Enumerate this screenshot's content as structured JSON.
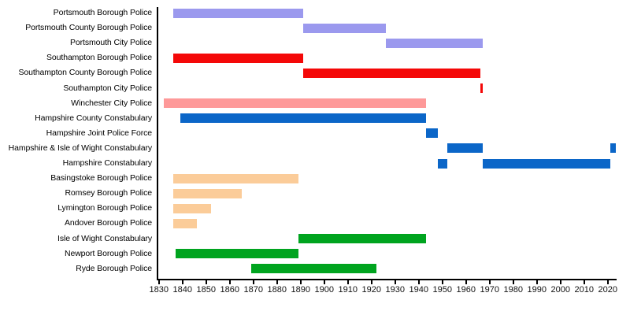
{
  "chart_data": {
    "type": "bar",
    "subtype": "timeline-gantt",
    "title": "",
    "xlabel": "",
    "ylabel": "",
    "grid": false,
    "legend": "none",
    "x_axis": {
      "min": 1829.4,
      "max": 2023.8,
      "tick_interval": 10,
      "ticks": [
        1830,
        1840,
        1850,
        1860,
        1870,
        1880,
        1890,
        1900,
        1910,
        1920,
        1930,
        1940,
        1950,
        1960,
        1970,
        1980,
        1990,
        2000,
        2010,
        2020
      ]
    },
    "colors": {
      "portsmouth": "#9b99ee",
      "southampton": "#f40808",
      "winchester": "#fe9999",
      "hampshire": "#0b66c8",
      "borough": "#fbcc99",
      "isle_of_wight": "#00a41f",
      "axis": "#000000"
    },
    "rows": [
      {
        "label": "Portsmouth Borough Police",
        "color": "portsmouth",
        "segments": [
          [
            1836,
            1891
          ]
        ]
      },
      {
        "label": "Portsmouth County Borough Police",
        "color": "portsmouth",
        "segments": [
          [
            1891,
            1926
          ]
        ]
      },
      {
        "label": "Portsmouth City Police",
        "color": "portsmouth",
        "segments": [
          [
            1926,
            1967
          ]
        ]
      },
      {
        "label": "Southampton Borough Police",
        "color": "southampton",
        "segments": [
          [
            1836,
            1891
          ]
        ]
      },
      {
        "label": "Southampton County Borough Police",
        "color": "southampton",
        "segments": [
          [
            1891,
            1966
          ]
        ]
      },
      {
        "label": "Southampton City Police",
        "color": "southampton",
        "segments": [
          [
            1966,
            1967
          ]
        ]
      },
      {
        "label": "Winchester City Police",
        "color": "winchester",
        "segments": [
          [
            1832,
            1943
          ]
        ]
      },
      {
        "label": "Hampshire County Constabulary",
        "color": "hampshire",
        "segments": [
          [
            1839,
            1943
          ]
        ]
      },
      {
        "label": "Hampshire Joint Police Force",
        "color": "hampshire",
        "segments": [
          [
            1943,
            1948
          ]
        ]
      },
      {
        "label": "Hampshire & Isle of Wight Constabulary",
        "color": "hampshire",
        "segments": [
          [
            1952,
            1967
          ],
          [
            2021,
            2023.5
          ]
        ]
      },
      {
        "label": "Hampshire Constabulary",
        "color": "hampshire",
        "segments": [
          [
            1948,
            1952
          ],
          [
            1967,
            2021
          ]
        ]
      },
      {
        "label": "Basingstoke Borough Police",
        "color": "borough",
        "segments": [
          [
            1836,
            1889
          ]
        ]
      },
      {
        "label": "Romsey Borough Police",
        "color": "borough",
        "segments": [
          [
            1836,
            1865
          ]
        ]
      },
      {
        "label": "Lymington Borough Police",
        "color": "borough",
        "segments": [
          [
            1836,
            1852
          ]
        ]
      },
      {
        "label": "Andover Borough Police",
        "color": "borough",
        "segments": [
          [
            1836,
            1846
          ]
        ]
      },
      {
        "label": "Isle of Wight Constabulary",
        "color": "isle_of_wight",
        "segments": [
          [
            1889,
            1943
          ]
        ]
      },
      {
        "label": "Newport Borough Police",
        "color": "isle_of_wight",
        "segments": [
          [
            1837,
            1889
          ]
        ]
      },
      {
        "label": "Ryde Borough Police",
        "color": "isle_of_wight",
        "segments": [
          [
            1869,
            1922
          ]
        ]
      }
    ]
  }
}
